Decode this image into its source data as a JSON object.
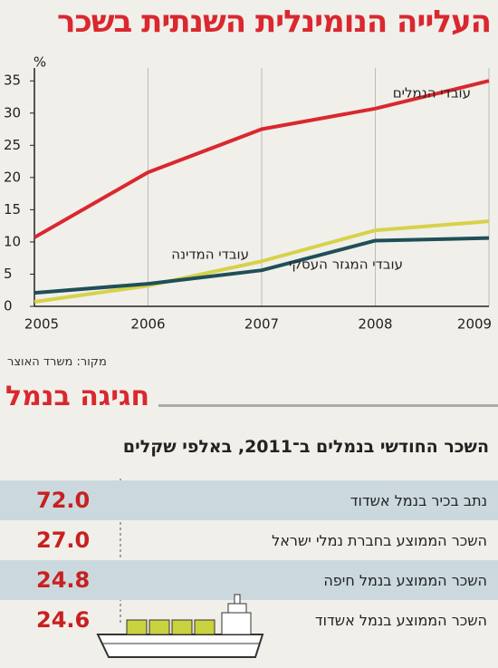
{
  "chart_data": {
    "type": "line",
    "title": "העלייה הנומינלית השנתית בשכר",
    "y_label": "%",
    "x": [
      2005,
      2006,
      2007,
      2008,
      2009
    ],
    "xlim": [
      2005,
      2009
    ],
    "xticks": [
      2005,
      2006,
      2007,
      2008,
      2009
    ],
    "ylim": [
      0,
      37
    ],
    "yticks": [
      0,
      5,
      10,
      15,
      20,
      25,
      30,
      35
    ],
    "grid": "x",
    "series": [
      {
        "name": "עובדי הנמלים",
        "color": "#d9282f",
        "values": [
          10.7,
          20.8,
          27.5,
          30.7,
          35
        ]
      },
      {
        "name": "עובדי המדינה",
        "color": "#d6d24a",
        "values": [
          0.7,
          3.2,
          7,
          11.8,
          13.2
        ]
      },
      {
        "name": "עובדי המגזר העסקי",
        "color": "#1f4f58",
        "values": [
          2.1,
          3.5,
          5.6,
          10.2,
          10.6
        ]
      }
    ],
    "source": "מקור: משרד האוצר"
  },
  "table": {
    "title": "חגיגה בנמל",
    "subtitle": "השכר החודשי בנמלים ב־2011, באלפי שקלים",
    "rows": [
      [
        "נתב בכיר בנמל אשדוד",
        "72.0"
      ],
      [
        "השכר הממוצע בחברת נמלי ישראל",
        "27.0"
      ],
      [
        "השכר הממוצע בנמל חיפה",
        "24.8"
      ],
      [
        "השכר הממוצע בנמל אשדוד",
        "24.6"
      ]
    ]
  }
}
